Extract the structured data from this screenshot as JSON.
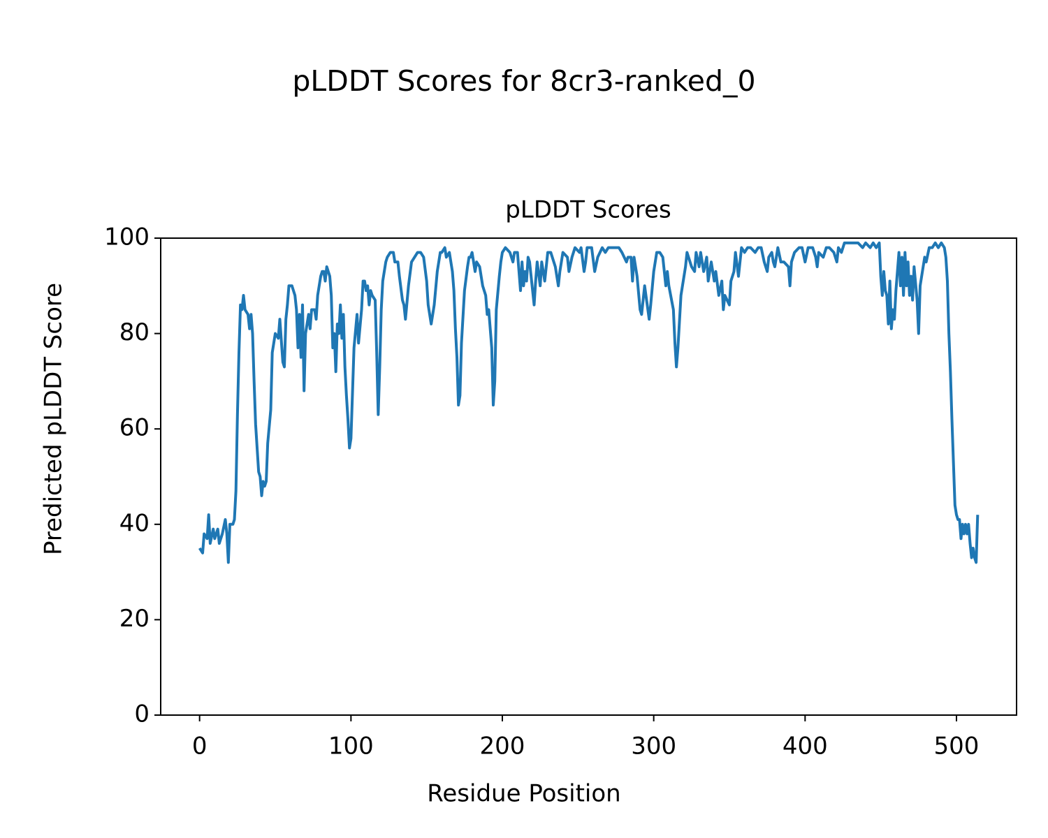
{
  "chart_data": {
    "type": "line",
    "suptitle": "pLDDT Scores for 8cr3-ranked_0",
    "title": "pLDDT Scores",
    "xlabel": "Residue Position",
    "ylabel": "Predicted pLDDT Score",
    "xlim": [
      -25.7,
      539.7
    ],
    "ylim": [
      0,
      100
    ],
    "xticks": [
      0,
      100,
      200,
      300,
      400,
      500
    ],
    "yticks": [
      0,
      20,
      40,
      60,
      80,
      100
    ],
    "grid": false,
    "series": [
      {
        "color": "#1f77b4",
        "x": [
          0,
          2,
          3,
          5,
          6,
          7,
          9,
          10,
          12,
          13,
          15,
          17,
          18,
          19,
          20,
          22,
          23,
          24,
          25,
          26,
          27,
          28,
          29,
          30,
          32,
          33,
          34,
          35,
          36,
          37,
          39,
          40,
          41,
          42,
          43,
          44,
          45,
          47,
          48,
          50,
          52,
          53,
          55,
          56,
          57,
          58,
          59,
          61,
          63,
          64,
          65,
          66,
          67,
          68,
          69,
          70,
          72,
          73,
          74,
          76,
          77,
          78,
          80,
          81,
          82,
          83,
          84,
          86,
          87,
          88,
          89,
          90,
          91,
          92,
          93,
          94,
          95,
          96,
          97,
          98,
          99,
          100,
          102,
          104,
          105,
          107,
          108,
          109,
          110,
          111,
          112,
          113,
          114,
          116,
          117,
          118,
          119,
          120,
          121,
          123,
          124,
          126,
          128,
          129,
          131,
          132,
          134,
          135,
          136,
          138,
          140,
          142,
          144,
          146,
          148,
          150,
          151,
          153,
          155,
          157,
          159,
          160,
          162,
          163,
          165,
          167,
          168,
          169,
          170,
          171,
          172,
          173,
          175,
          177,
          178,
          179,
          180,
          182,
          183,
          185,
          187,
          189,
          190,
          191,
          193,
          194,
          195,
          196,
          198,
          199,
          200,
          202,
          205,
          207,
          208,
          210,
          212,
          213,
          214,
          215,
          216,
          217,
          218,
          221,
          222,
          223,
          225,
          226,
          228,
          230,
          232,
          235,
          237,
          238,
          240,
          243,
          244,
          246,
          248,
          251,
          252,
          254,
          255,
          256,
          259,
          261,
          263,
          266,
          268,
          270,
          272,
          275,
          277,
          279,
          282,
          283,
          285,
          286,
          287,
          289,
          291,
          292,
          294,
          297,
          298,
          300,
          302,
          304,
          306,
          308,
          309,
          310,
          313,
          314,
          315,
          316,
          318,
          321,
          322,
          324,
          325,
          327,
          328,
          330,
          331,
          333,
          335,
          336,
          338,
          340,
          341,
          343,
          345,
          346,
          347,
          350,
          351,
          353,
          354,
          356,
          358,
          360,
          362,
          364,
          367,
          369,
          371,
          373,
          375,
          376,
          378,
          379,
          380,
          382,
          384,
          386,
          389,
          390,
          391,
          393,
          396,
          398,
          400,
          402,
          405,
          407,
          408,
          409,
          412,
          414,
          416,
          419,
          421,
          422,
          424,
          426,
          430,
          435,
          438,
          440,
          443,
          445,
          447,
          449,
          450,
          451,
          452,
          453,
          454,
          455,
          456,
          457,
          458,
          459,
          460,
          462,
          463,
          464,
          465,
          466,
          467,
          468,
          469,
          470,
          471,
          472,
          474,
          475,
          476,
          477,
          479,
          480,
          482,
          484,
          486,
          488,
          490,
          492,
          493,
          494,
          495,
          496,
          497,
          498,
          499,
          500,
          501,
          502,
          503,
          504,
          505,
          506,
          507,
          508,
          509,
          510,
          511,
          512,
          513,
          514
        ],
        "values": [
          35,
          34,
          38,
          37,
          42,
          36,
          39,
          37,
          39,
          36,
          38,
          41,
          38,
          32,
          40,
          40,
          41,
          47,
          63,
          76,
          86,
          85,
          88,
          85,
          84,
          81,
          84,
          80,
          70,
          61,
          51,
          50,
          46,
          49,
          48,
          49,
          57,
          64,
          76,
          80,
          79,
          83,
          74,
          73,
          83,
          86,
          90,
          90,
          88,
          85,
          77,
          84,
          75,
          86,
          68,
          80,
          84,
          81,
          85,
          85,
          83,
          88,
          92,
          93,
          93,
          91,
          94,
          92,
          88,
          77,
          80,
          72,
          82,
          80,
          86,
          79,
          84,
          73,
          67,
          62,
          56,
          58,
          77,
          84,
          78,
          85,
          91,
          91,
          89,
          90,
          86,
          89,
          88,
          87,
          76,
          63,
          73,
          85,
          91,
          95,
          96,
          97,
          97,
          95,
          95,
          92,
          87,
          86,
          83,
          90,
          95,
          96,
          97,
          97,
          96,
          91,
          86,
          82,
          86,
          93,
          97,
          97,
          98,
          96,
          97,
          93,
          89,
          81,
          75,
          65,
          67,
          78,
          89,
          94,
          96,
          96,
          97,
          93,
          95,
          94,
          90,
          88,
          84,
          85,
          77,
          65,
          70,
          85,
          92,
          95,
          97,
          98,
          97,
          95,
          97,
          97,
          89,
          95,
          90,
          93,
          91,
          96,
          95,
          86,
          91,
          95,
          90,
          95,
          91,
          97,
          97,
          94,
          90,
          93,
          97,
          96,
          93,
          96,
          98,
          97,
          98,
          93,
          95,
          98,
          98,
          93,
          96,
          98,
          97,
          98,
          98,
          98,
          98,
          97,
          95,
          96,
          96,
          91,
          96,
          92,
          85,
          84,
          90,
          83,
          86,
          93,
          97,
          97,
          96,
          90,
          93,
          90,
          85,
          78,
          73,
          77,
          88,
          94,
          97,
          95,
          94,
          93,
          97,
          94,
          97,
          93,
          96,
          91,
          95,
          91,
          93,
          88,
          91,
          85,
          88,
          86,
          91,
          93,
          97,
          92,
          98,
          97,
          98,
          98,
          97,
          98,
          98,
          95,
          93,
          96,
          97,
          95,
          94,
          98,
          95,
          95,
          94,
          90,
          95,
          97,
          98,
          98,
          95,
          98,
          98,
          96,
          94,
          97,
          96,
          98,
          98,
          97,
          95,
          98,
          97,
          99,
          99,
          99,
          98,
          99,
          98,
          99,
          98,
          99,
          92,
          88,
          93,
          89,
          88,
          82,
          91,
          81,
          85,
          83,
          89,
          97,
          90,
          96,
          88,
          97,
          90,
          95,
          88,
          92,
          87,
          94,
          87,
          80,
          90,
          92,
          96,
          95,
          98,
          98,
          99,
          98,
          99,
          98,
          96,
          91,
          80,
          72,
          62,
          53,
          44,
          42,
          41,
          41,
          37,
          40,
          38,
          40,
          38,
          40,
          36,
          33,
          35,
          33,
          32,
          42
        ]
      }
    ]
  }
}
